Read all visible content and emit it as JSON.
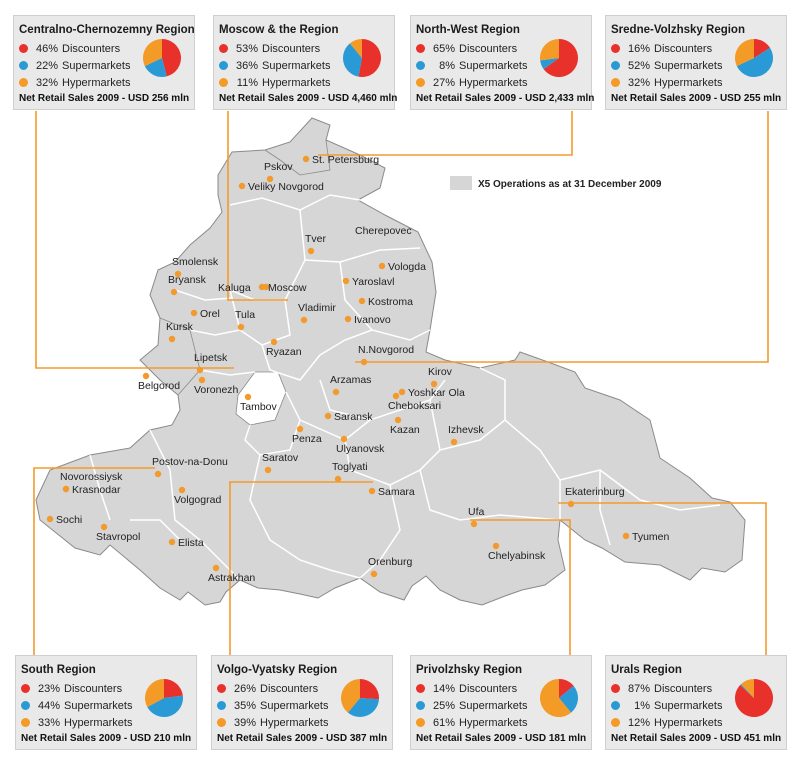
{
  "legend": {
    "label": "X5 Operations as at 31 December 2009",
    "color": "#d6d6d6"
  },
  "colors": {
    "discounters": "#e8312a",
    "supermarkets": "#2a9ad6",
    "hypermarkets": "#f49a26",
    "connector": "#f39a2d",
    "city_dot": "#f39a2d",
    "map_fill": "#d6d6d6",
    "map_border": "#ffffff",
    "map_outline": "#8a8a8a"
  },
  "regions": [
    {
      "id": "centralno",
      "title": "Centralno-Chernozemny Region",
      "discounters": {
        "pct": 46,
        "label": "46%",
        "text": "Discounters"
      },
      "supermarkets": {
        "pct": 22,
        "label": "22%",
        "text": "Supermarkets"
      },
      "hypermarkets": {
        "pct": 32,
        "label": "32%",
        "text": "Hypermarkets"
      },
      "sales": "Net Retail Sales 2009 - USD 256 mln"
    },
    {
      "id": "moscow",
      "title": "Moscow & the Region",
      "discounters": {
        "pct": 53,
        "label": "53%",
        "text": "Discounters"
      },
      "supermarkets": {
        "pct": 36,
        "label": "36%",
        "text": "Supermarkets"
      },
      "hypermarkets": {
        "pct": 11,
        "label": "11%",
        "text": "Hypermarkets"
      },
      "sales": "Net Retail Sales 2009 - USD 4,460 mln"
    },
    {
      "id": "northwest",
      "title": "North-West Region",
      "discounters": {
        "pct": 65,
        "label": "65%",
        "text": "Discounters"
      },
      "supermarkets": {
        "pct": 8,
        "label": "8%",
        "text": "Supermarkets"
      },
      "hypermarkets": {
        "pct": 27,
        "label": "27%",
        "text": "Hypermarkets"
      },
      "sales": "Net Retail Sales 2009 - USD 2,433 mln"
    },
    {
      "id": "sredne",
      "title": "Sredne-Volzhsky Region",
      "discounters": {
        "pct": 16,
        "label": "16%",
        "text": "Discounters"
      },
      "supermarkets": {
        "pct": 52,
        "label": "52%",
        "text": "Supermarkets"
      },
      "hypermarkets": {
        "pct": 32,
        "label": "32%",
        "text": "Hypermarkets"
      },
      "sales": "Net Retail Sales 2009 - USD 255 mln"
    },
    {
      "id": "south",
      "title": "South Region",
      "discounters": {
        "pct": 23,
        "label": "23%",
        "text": "Discounters"
      },
      "supermarkets": {
        "pct": 44,
        "label": "44%",
        "text": "Supermarkets"
      },
      "hypermarkets": {
        "pct": 33,
        "label": "33%",
        "text": "Hypermarkets"
      },
      "sales": "Net Retail Sales 2009 - USD 210 mln"
    },
    {
      "id": "volgo",
      "title": "Volgo-Vyatsky Region",
      "discounters": {
        "pct": 26,
        "label": "26%",
        "text": "Discounters"
      },
      "supermarkets": {
        "pct": 35,
        "label": "35%",
        "text": "Supermarkets"
      },
      "hypermarkets": {
        "pct": 39,
        "label": "39%",
        "text": "Hypermarkets"
      },
      "sales": "Net Retail Sales 2009 - USD 387 mln"
    },
    {
      "id": "privolzhsky",
      "title": "Privolzhsky Region",
      "discounters": {
        "pct": 14,
        "label": "14%",
        "text": "Discounters"
      },
      "supermarkets": {
        "pct": 25,
        "label": "25%",
        "text": "Supermarkets"
      },
      "hypermarkets": {
        "pct": 61,
        "label": "61%",
        "text": "Hypermarkets"
      },
      "sales": "Net Retail Sales 2009 - USD 181 mln"
    },
    {
      "id": "urals",
      "title": "Urals Region",
      "discounters": {
        "pct": 87,
        "label": "87%",
        "text": "Discounters"
      },
      "supermarkets": {
        "pct": 1,
        "label": "1%",
        "text": "Supermarkets"
      },
      "hypermarkets": {
        "pct": 12,
        "label": "12%",
        "text": "Hypermarkets"
      },
      "sales": "Net Retail Sales 2009 - USD 451 mln"
    }
  ],
  "cities": [
    "Pskov",
    "St. Petersburg",
    "Veliky Novgorod",
    "Cherepovec",
    "Tver",
    "Vologda",
    "Smolensk",
    "Bryansk",
    "Kaluga",
    "Moscow",
    "Yaroslavl",
    "Kostroma",
    "Orel",
    "Tula",
    "Vladimir",
    "Ivanovo",
    "Kursk",
    "Ryazan",
    "Lipetsk",
    "N.Novgorod",
    "Belgorod",
    "Voronezh",
    "Kirov",
    "Arzamas",
    "Yoshkar Ola",
    "Tambov",
    "Cheboksari",
    "Saransk",
    "Kazan",
    "Izhevsk",
    "Penza",
    "Ulyanovsk",
    "Postov-na-Donu",
    "Saratov",
    "Toglyati",
    "Novorossiysk",
    "Krasnodar",
    "Samara",
    "Volgograd",
    "Ekaterinburg",
    "Sochi",
    "Ufa",
    "Stavropol",
    "Elista",
    "Chelyabinsk",
    "Tyumen",
    "Orenburg",
    "Astrakhan"
  ]
}
